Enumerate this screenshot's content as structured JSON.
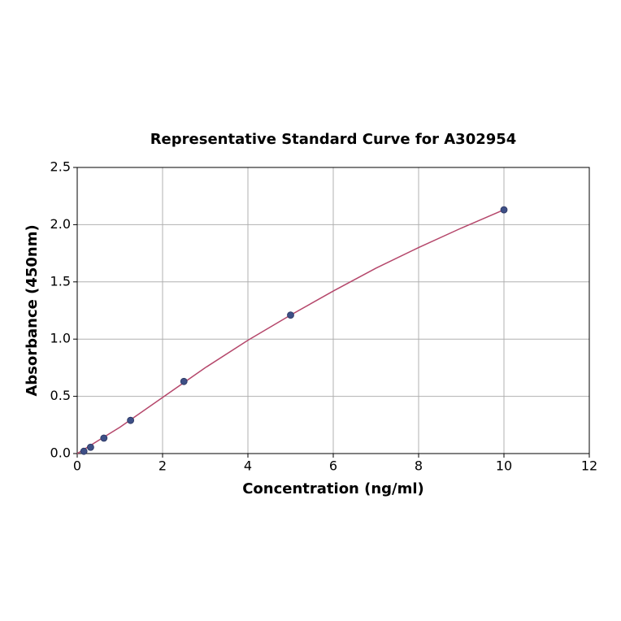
{
  "chart_data": {
    "type": "scatter",
    "title": "Representative Standard Curve for A302954",
    "x_label": "Concentration (ng/ml)",
    "y_label": "Absorbance (450nm)",
    "x": [
      0.156,
      0.3125,
      0.625,
      1.25,
      2.5,
      5,
      10
    ],
    "values": [
      0.02,
      0.055,
      0.135,
      0.29,
      0.63,
      1.21,
      2.13
    ],
    "color": "#3e4f86",
    "curve": {
      "x": [
        0,
        1,
        2,
        3,
        4,
        5,
        6,
        7,
        8,
        9,
        10
      ],
      "values": [
        0,
        0.23,
        0.49,
        0.75,
        0.99,
        1.21,
        1.42,
        1.62,
        1.8,
        1.97,
        2.13
      ],
      "color": "#b5476b"
    },
    "xlim": [
      0,
      12
    ],
    "xticks": [
      0,
      2,
      4,
      6,
      8,
      10,
      12
    ],
    "ylim": [
      0,
      2.5
    ],
    "yticks": [
      {
        "value": 0,
        "label": "0.0"
      },
      0.5,
      {
        "value": 1,
        "label": "1.0"
      },
      1.5,
      {
        "value": 2,
        "label": "2.0"
      },
      2.5
    ],
    "grid": true
  }
}
